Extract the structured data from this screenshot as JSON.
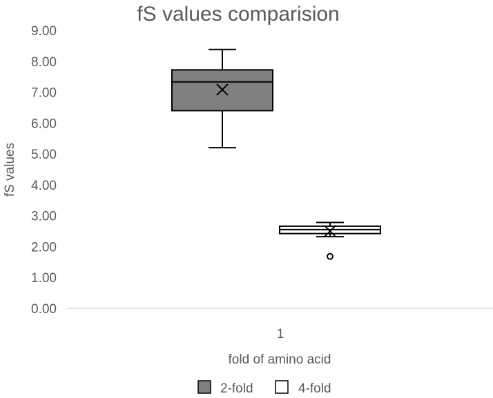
{
  "chart_data": {
    "type": "box",
    "title": "fS values comparision",
    "xlabel": "fold of amino acid",
    "ylabel": "fS values",
    "categories": [
      "1"
    ],
    "ylim": [
      0,
      9
    ],
    "ytick_step": 1,
    "ytick_labels": [
      "0.00",
      "1.00",
      "2.00",
      "3.00",
      "4.00",
      "5.00",
      "6.00",
      "7.00",
      "8.00",
      "9.00"
    ],
    "grid": false,
    "legend_position": "bottom",
    "series": [
      {
        "name": "2-fold",
        "color": "#808080",
        "min": 5.2,
        "q1": 6.4,
        "median": 7.33,
        "q3": 7.72,
        "max": 8.38,
        "mean": 7.08,
        "outliers": []
      },
      {
        "name": "4-fold",
        "color": "#ffffff",
        "min": 2.32,
        "q1": 2.42,
        "median": 2.55,
        "q3": 2.66,
        "max": 2.78,
        "mean": 2.5,
        "outliers": [
          1.68
        ]
      }
    ]
  }
}
